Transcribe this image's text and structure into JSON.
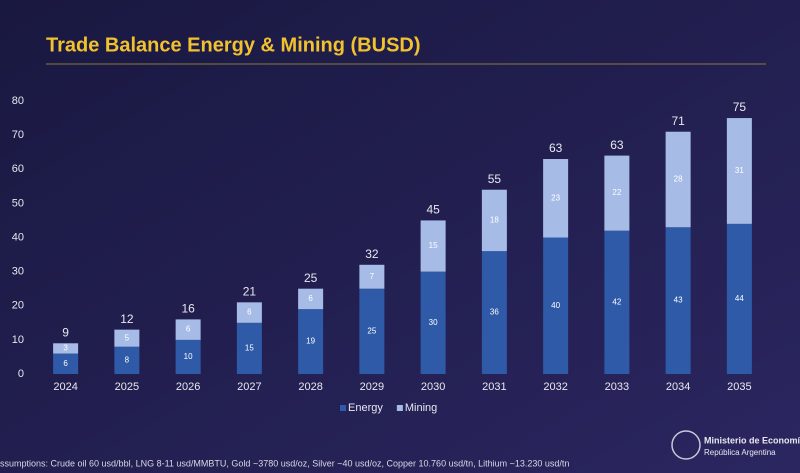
{
  "chart_data": {
    "type": "bar",
    "stacked": true,
    "title": "Trade Balance Energy & Mining (BUSD)",
    "categories": [
      "2024",
      "2025",
      "2026",
      "2027",
      "2028",
      "2029",
      "2030",
      "2031",
      "2032",
      "2033",
      "2034",
      "2035"
    ],
    "series": [
      {
        "name": "Energy",
        "color": "#2f5aa8",
        "values": [
          6,
          8,
          10,
          15,
          19,
          25,
          30,
          36,
          40,
          42,
          43,
          44
        ]
      },
      {
        "name": "Mining",
        "color": "#a6bce6",
        "values": [
          3,
          5,
          6,
          6,
          6,
          7,
          15,
          18,
          23,
          22,
          28,
          31
        ]
      }
    ],
    "totals": [
      9,
      12,
      16,
      21,
      25,
      32,
      45,
      55,
      63,
      63,
      71,
      75
    ],
    "ylim": [
      0,
      80
    ],
    "yticks": [
      0,
      10,
      20,
      30,
      40,
      50,
      60,
      70,
      80
    ],
    "grid": false,
    "legend": "bottom"
  },
  "footer": {
    "assumptions": "ssumptions: Crude oil 60 usd/bbl, LNG 8-11 usd/MMBTU, Gold ~3780 usd/oz, Silver ~40 usd/oz, Copper 10.760 usd/tn, Lithium ~13.230 usd/tn",
    "logo_line1": "Ministerio de Economía",
    "logo_line2": "República Argentina"
  }
}
